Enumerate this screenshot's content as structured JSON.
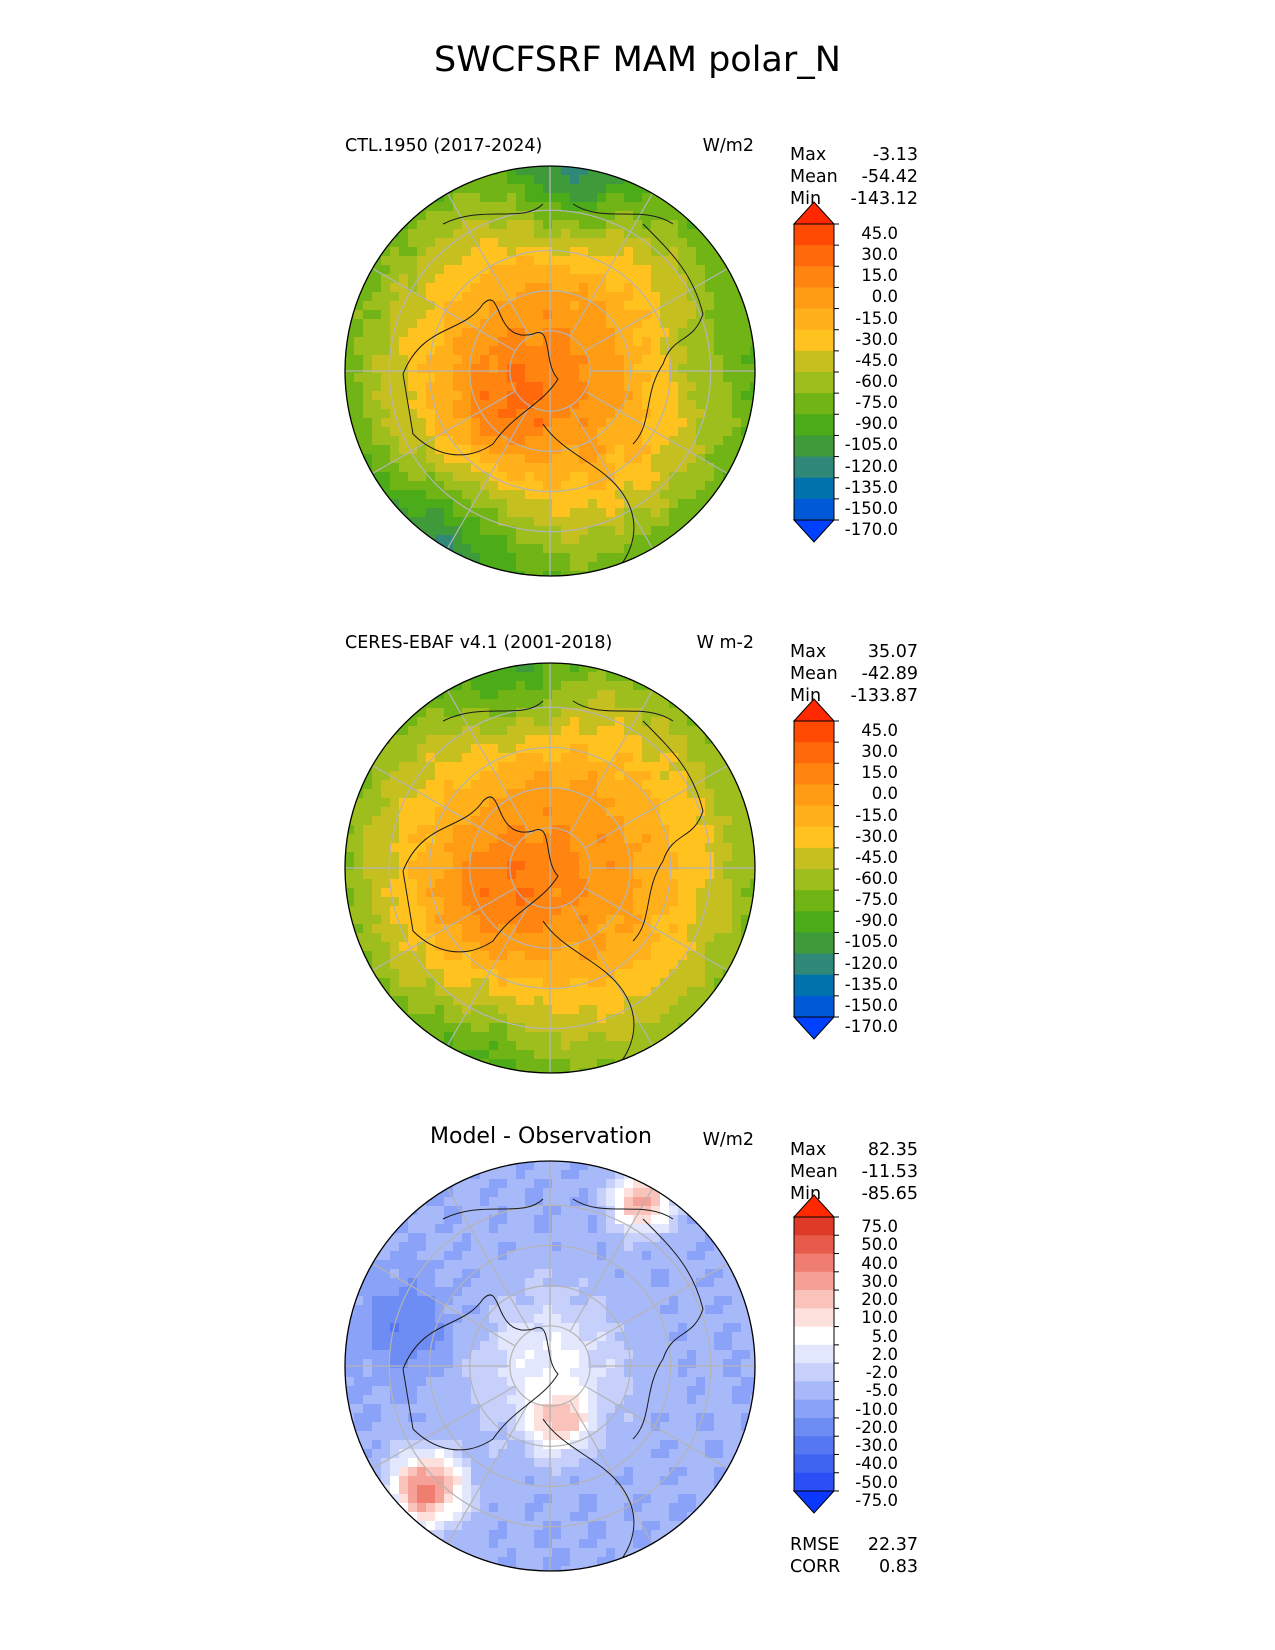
{
  "title": "SWCFSRF MAM polar_N",
  "colors": {
    "field": [
      "#0041ff",
      "#005ad8",
      "#0073ad",
      "#2f8878",
      "#3f9a3a",
      "#4bab18",
      "#70b416",
      "#9ebe1e",
      "#c5c020",
      "#ffc21e",
      "#ffb01a",
      "#ff9c14",
      "#ff8410",
      "#ff690b",
      "#ff4a04",
      "#ff2800"
    ],
    "diff": [
      "#0b38ff",
      "#2a4ff6",
      "#3f64f2",
      "#5577f2",
      "#6d8cf4",
      "#8aa2f7",
      "#a8b9f9",
      "#c6d0fb",
      "#e2e7fd",
      "#ffffff",
      "#fde0dc",
      "#f9c2ba",
      "#f5a197",
      "#ef7e70",
      "#e85a4a",
      "#df3a27",
      "#ff2800"
    ]
  },
  "panels": [
    {
      "label_left": "CTL.1950 (2017-2024)",
      "label_right": "W/m2",
      "stats": [
        {
          "k": "Max",
          "v": "-3.13"
        },
        {
          "k": "Mean",
          "v": "-54.42"
        },
        {
          "k": "Min",
          "v": "-143.12"
        }
      ],
      "ticks": [
        "45.0",
        "30.0",
        "15.0",
        "0.0",
        "-15.0",
        "-30.0",
        "-45.0",
        "-60.0",
        "-75.0",
        "-90.0",
        "-105.0",
        "-120.0",
        "-135.0",
        "-150.0",
        "-170.0"
      ]
    },
    {
      "label_left": "CERES-EBAF v4.1 (2001-2018)",
      "label_right": "W m-2",
      "stats": [
        {
          "k": "Max",
          "v": "35.07"
        },
        {
          "k": "Mean",
          "v": "-42.89"
        },
        {
          "k": "Min",
          "v": "-133.87"
        }
      ],
      "ticks": [
        "45.0",
        "30.0",
        "15.0",
        "0.0",
        "-15.0",
        "-30.0",
        "-45.0",
        "-60.0",
        "-75.0",
        "-90.0",
        "-105.0",
        "-120.0",
        "-135.0",
        "-150.0",
        "-170.0"
      ]
    },
    {
      "label_center": "Model - Observation",
      "label_right": "W/m2",
      "stats": [
        {
          "k": "Max",
          "v": "82.35"
        },
        {
          "k": "Mean",
          "v": "-11.53"
        },
        {
          "k": "Min",
          "v": "-85.65"
        }
      ],
      "ticks": [
        "75.0",
        "50.0",
        "40.0",
        "30.0",
        "20.0",
        "10.0",
        "5.0",
        "2.0",
        "-2.0",
        "-5.0",
        "-10.0",
        "-20.0",
        "-30.0",
        "-40.0",
        "-50.0",
        "-75.0"
      ],
      "rmse": {
        "k": "RMSE",
        "v": "22.37"
      },
      "corr": {
        "k": "CORR",
        "v": "0.83"
      }
    }
  ],
  "chart_data": {
    "type": "heatmap",
    "projection": "north polar stereographic",
    "title": "SWCFSRF MAM polar_N",
    "units": "W/m2",
    "series": [
      {
        "name": "CTL.1950 (2017-2024)",
        "max": -3.13,
        "mean": -54.42,
        "min": -143.12,
        "levels": [
          -170,
          -150,
          -135,
          -120,
          -105,
          -90,
          -75,
          -60,
          -45,
          -30,
          -15,
          0,
          15,
          30,
          45
        ]
      },
      {
        "name": "CERES-EBAF v4.1 (2001-2018)",
        "max": 35.07,
        "mean": -42.89,
        "min": -133.87,
        "levels": [
          -170,
          -150,
          -135,
          -120,
          -105,
          -90,
          -75,
          -60,
          -45,
          -30,
          -15,
          0,
          15,
          30,
          45
        ]
      },
      {
        "name": "Model - Observation",
        "max": 82.35,
        "mean": -11.53,
        "min": -85.65,
        "rmse": 22.37,
        "corr": 0.83,
        "levels": [
          -75,
          -50,
          -40,
          -30,
          -20,
          -10,
          -5,
          -2,
          2,
          5,
          10,
          20,
          30,
          40,
          50,
          75
        ]
      }
    ],
    "colorbar_extend": "both"
  }
}
